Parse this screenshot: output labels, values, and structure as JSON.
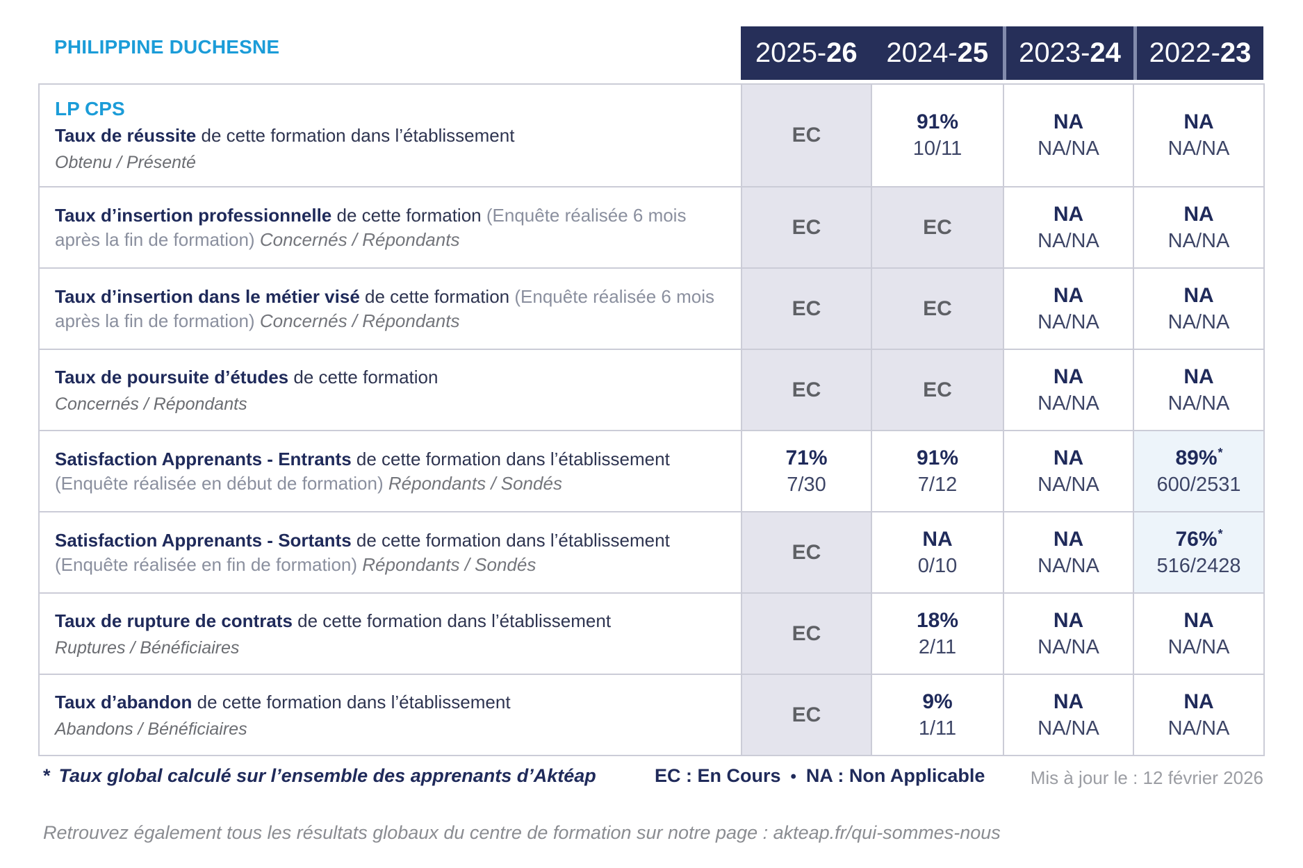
{
  "header": {
    "title": "PHILIPPINE DUCHESNE",
    "years": [
      {
        "prefix": "2025-",
        "bold": "26"
      },
      {
        "prefix": "2024-",
        "bold": "25"
      },
      {
        "prefix": "2023-",
        "bold": "24"
      },
      {
        "prefix": "2022-",
        "bold": "23"
      }
    ]
  },
  "table": {
    "rows": [
      {
        "heading": "LP CPS",
        "title": "Taux de réussite",
        "desc": "de cette formation dans l’établissement",
        "paren": "",
        "tail": "",
        "sub": "Obtenu / Présenté",
        "cells": [
          {
            "main": "EC",
            "sub": "",
            "star": "",
            "variant": "ec"
          },
          {
            "main": "91%",
            "sub": "10/11",
            "star": "",
            "variant": "plain"
          },
          {
            "main": "NA",
            "sub": "NA/NA",
            "star": "",
            "variant": "plain"
          },
          {
            "main": "NA",
            "sub": "NA/NA",
            "star": "",
            "variant": "plain"
          }
        ]
      },
      {
        "heading": "",
        "title": "Taux d’insertion professionnelle",
        "desc": "de cette formation",
        "paren": "(Enquête réalisée 6 mois après la fin de formation)",
        "tail": "Concernés / Répondants",
        "sub": "",
        "cells": [
          {
            "main": "EC",
            "sub": "",
            "star": "",
            "variant": "ec"
          },
          {
            "main": "EC",
            "sub": "",
            "star": "",
            "variant": "ec"
          },
          {
            "main": "NA",
            "sub": "NA/NA",
            "star": "",
            "variant": "plain"
          },
          {
            "main": "NA",
            "sub": "NA/NA",
            "star": "",
            "variant": "plain"
          }
        ]
      },
      {
        "heading": "",
        "title": "Taux d’insertion dans le métier visé",
        "desc": "de cette formation",
        "paren": "(Enquête réalisée 6 mois après la fin de formation)",
        "tail": "Concernés / Répondants",
        "sub": "",
        "cells": [
          {
            "main": "EC",
            "sub": "",
            "star": "",
            "variant": "ec"
          },
          {
            "main": "EC",
            "sub": "",
            "star": "",
            "variant": "ec"
          },
          {
            "main": "NA",
            "sub": "NA/NA",
            "star": "",
            "variant": "plain"
          },
          {
            "main": "NA",
            "sub": "NA/NA",
            "star": "",
            "variant": "plain"
          }
        ]
      },
      {
        "heading": "",
        "title": "Taux de poursuite d’études",
        "desc": "de cette formation",
        "paren": "",
        "tail": "",
        "sub": "Concernés / Répondants",
        "cells": [
          {
            "main": "EC",
            "sub": "",
            "star": "",
            "variant": "ec"
          },
          {
            "main": "EC",
            "sub": "",
            "star": "",
            "variant": "ec"
          },
          {
            "main": "NA",
            "sub": "NA/NA",
            "star": "",
            "variant": "plain"
          },
          {
            "main": "NA",
            "sub": "NA/NA",
            "star": "",
            "variant": "plain"
          }
        ]
      },
      {
        "heading": "",
        "title": "Satisfaction Apprenants - Entrants",
        "desc": "de cette formation dans l’établissement",
        "paren": "(Enquête réalisée en début de formation)",
        "tail": "Répondants / Sondés",
        "sub": "",
        "cells": [
          {
            "main": "71%",
            "sub": "7/30",
            "star": "",
            "variant": "plain"
          },
          {
            "main": "91%",
            "sub": "7/12",
            "star": "",
            "variant": "plain"
          },
          {
            "main": "NA",
            "sub": "NA/NA",
            "star": "",
            "variant": "plain"
          },
          {
            "main": "89%",
            "sub": "600/2531",
            "star": "*",
            "variant": "highlight"
          }
        ]
      },
      {
        "heading": "",
        "title": "Satisfaction Apprenants - Sortants",
        "desc": "de cette formation dans l’établissement",
        "paren": "(Enquête réalisée en fin de formation)",
        "tail": "Répondants / Sondés",
        "sub": "",
        "cells": [
          {
            "main": "EC",
            "sub": "",
            "star": "",
            "variant": "ec"
          },
          {
            "main": "NA",
            "sub": "0/10",
            "star": "",
            "variant": "plain"
          },
          {
            "main": "NA",
            "sub": "NA/NA",
            "star": "",
            "variant": "plain"
          },
          {
            "main": "76%",
            "sub": "516/2428",
            "star": "*",
            "variant": "highlight"
          }
        ]
      },
      {
        "heading": "",
        "title": "Taux de rupture de contrats",
        "desc": "de cette formation dans l’établissement",
        "paren": "",
        "tail": "",
        "sub": "Ruptures / Bénéficiaires",
        "cells": [
          {
            "main": "EC",
            "sub": "",
            "star": "",
            "variant": "ec"
          },
          {
            "main": "18%",
            "sub": "2/11",
            "star": "",
            "variant": "plain"
          },
          {
            "main": "NA",
            "sub": "NA/NA",
            "star": "",
            "variant": "plain"
          },
          {
            "main": "NA",
            "sub": "NA/NA",
            "star": "",
            "variant": "plain"
          }
        ]
      },
      {
        "heading": "",
        "title": "Taux d’abandon",
        "desc": "de cette formation dans l’établissement",
        "paren": "",
        "tail": "",
        "sub": "Abandons / Bénéficiaires",
        "cells": [
          {
            "main": "EC",
            "sub": "",
            "star": "",
            "variant": "ec"
          },
          {
            "main": "9%",
            "sub": "1/11",
            "star": "",
            "variant": "plain"
          },
          {
            "main": "NA",
            "sub": "NA/NA",
            "star": "",
            "variant": "plain"
          },
          {
            "main": "NA",
            "sub": "NA/NA",
            "star": "",
            "variant": "plain"
          }
        ]
      }
    ]
  },
  "footer": {
    "note_star": "*",
    "note_text": "Taux global calculé sur l’ensemble des apprenants d’Aktéap",
    "legend_ec": "EC : En Cours",
    "legend_sep": "•",
    "legend_na": "NA : Non Applicable",
    "updated": "Mis à jour le : 12 février 2026",
    "info": "Retrouvez également tous les résultats globaux du centre de formation sur notre page : akteap.fr/qui-sommes-nous"
  },
  "colors": {
    "accent_blue": "#1b9cd8",
    "navy": "#1f2a5a",
    "header_bg": "#262f59",
    "ec_cell_bg": "#e4e4ed",
    "highlight_cell_bg": "#edf4fa",
    "border": "#cbccd7"
  }
}
